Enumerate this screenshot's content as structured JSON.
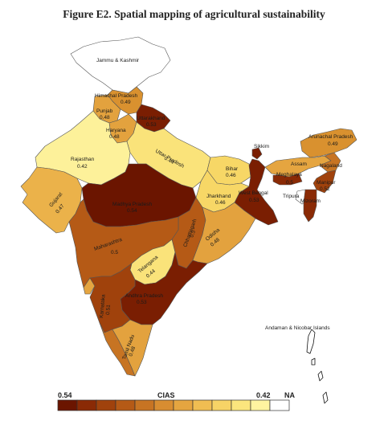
{
  "title": "Figure E2. Spatial mapping of agricultural sustainability",
  "legend": {
    "title": "CIAS",
    "max_label": "0.54",
    "min_label": "0.42",
    "na_label": "NA",
    "colors": [
      "#6b1500",
      "#8a2a05",
      "#a0420c",
      "#b55a16",
      "#c77423",
      "#d88d31",
      "#e5a540",
      "#f0bd52",
      "#f7d366",
      "#fbe57d",
      "#fff4a0",
      "#ffffff"
    ]
  },
  "regions": {
    "jammu_kashmir": {
      "name": "Jammu & Kashmir",
      "value": "",
      "color": "#ffffff"
    },
    "himachal": {
      "name": "Himachal Pradesh",
      "value": "0.49",
      "color": "#d9912f"
    },
    "punjab": {
      "name": "Punjab",
      "value": "0.48",
      "color": "#e3a23e"
    },
    "haryana": {
      "name": "Haryana",
      "value": "0.48",
      "color": "#e3a23e"
    },
    "uttarakhand": {
      "name": "Uttarakhand",
      "value": "0.53",
      "color": "#7a1e02"
    },
    "rajasthan": {
      "name": "Rajasthan",
      "value": "0.42",
      "color": "#fdf19a"
    },
    "uttar_pradesh": {
      "name": "Uttar Pradesh",
      "value": "0.44",
      "color": "#fae37a"
    },
    "bihar": {
      "name": "Bihar",
      "value": "0.46",
      "color": "#f7d766"
    },
    "sikkim": {
      "name": "Sikkim",
      "value": "",
      "color": "#7a1e02"
    },
    "arunachal": {
      "name": "Arunachal Pradesh",
      "value": "0.49",
      "color": "#d9912f"
    },
    "assam": {
      "name": "Assam",
      "value": "",
      "color": "#e5a540"
    },
    "nagaland": {
      "name": "Nagaland",
      "value": "",
      "color": "#c77423"
    },
    "meghalaya": {
      "name": "Meghalaya",
      "value": "0.5",
      "color": "#8a2a05"
    },
    "manipur": {
      "name": "Manipur",
      "value": "0.52",
      "color": "#a0420c"
    },
    "tripura": {
      "name": "Tripura",
      "value": "",
      "color": "#ffffff"
    },
    "mizoram": {
      "name": "Mizoram",
      "value": "",
      "color": "#8a2a05"
    },
    "gujarat": {
      "name": "Gujarat",
      "value": "0.47",
      "color": "#ebb24a"
    },
    "madhya_pradesh": {
      "name": "Madhya Pradesh",
      "value": "0.54",
      "color": "#6b1500"
    },
    "jharkhand": {
      "name": "Jharkhand",
      "value": "0.46",
      "color": "#f7d766"
    },
    "west_bengal": {
      "name": "West Bengal",
      "value": "0.53",
      "color": "#7a1e02"
    },
    "chhattisgarh": {
      "name": "Chhattisgarh",
      "value": "0.5",
      "color": "#b55a16"
    },
    "odisha": {
      "name": "Odisha",
      "value": "0.48",
      "color": "#e3a23e"
    },
    "maharashtra": {
      "name": "Maharashtra",
      "value": "0.5",
      "color": "#b55a16"
    },
    "telangana": {
      "name": "Telangana",
      "value": "0.44",
      "color": "#fae37a"
    },
    "andhra_pradesh": {
      "name": "Andhra Pradesh",
      "value": "0.53",
      "color": "#7a1e02"
    },
    "karnataka": {
      "name": "Karnataka",
      "value": "0.51",
      "color": "#a0420c"
    },
    "goa": {
      "name": "Goa",
      "value": "",
      "color": "#e5a540"
    },
    "kerala": {
      "name": "Kerala",
      "value": "",
      "color": "#c77423"
    },
    "tamil_nadu": {
      "name": "Tamil Nadu",
      "value": "0.48",
      "color": "#e3a23e"
    },
    "andaman": {
      "name": "Andaman & Nicobar Islands",
      "value": "",
      "color": "#ffffff"
    }
  }
}
